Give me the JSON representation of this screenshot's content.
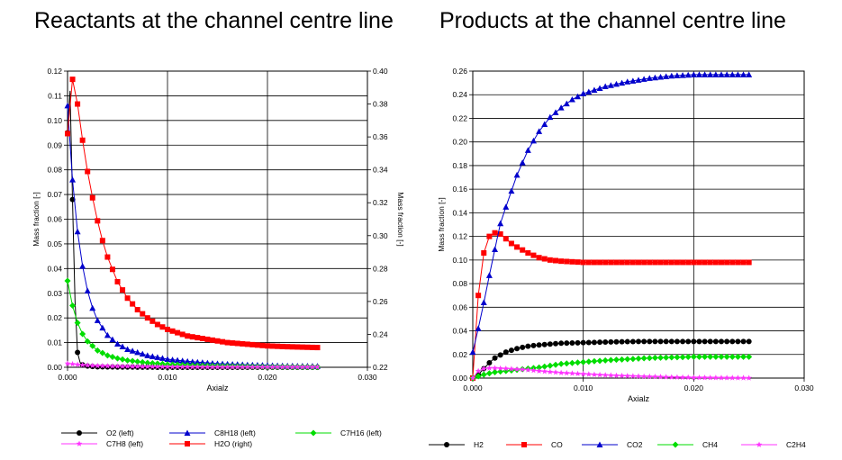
{
  "chart_data": [
    {
      "type": "line",
      "title": "Reactants at the channel centre line",
      "xlabel": "Axialz",
      "ylabel": "Mass fraction [-]",
      "ylabel_right": "Mass fraction [-]",
      "xlim": [
        0.0,
        0.03
      ],
      "ylim": [
        0.0,
        0.12
      ],
      "ylim_right": [
        0.22,
        0.4
      ],
      "xticks": [
        "0.000",
        "0.010",
        "0.020",
        "0.030"
      ],
      "yticks": [
        "0.00",
        "0.01",
        "0.02",
        "0.03",
        "0.04",
        "0.05",
        "0.06",
        "0.07",
        "0.08",
        "0.09",
        "0.10",
        "0.11",
        "0.12"
      ],
      "yticks_right": [
        "0.22",
        "0.24",
        "0.26",
        "0.28",
        "0.30",
        "0.32",
        "0.34",
        "0.36",
        "0.38",
        "0.40"
      ],
      "grid": true,
      "legend_position": "bottom",
      "series": [
        {
          "name": "O2 (left)",
          "color": "#000000",
          "marker": "circle",
          "axis": "left",
          "x": [
            0,
            0.00025,
            0.0005,
            0.00075,
            0.001,
            0.00125,
            0.0015,
            0.002,
            0.0025,
            0.003,
            0.005,
            0.01,
            0.015,
            0.02,
            0.025
          ],
          "y": [
            0.095,
            0.112,
            0.068,
            0.027,
            0.006,
            0.002,
            0.001,
            0.0005,
            0.0003,
            0.0002,
            0.0001,
            0.0,
            0.0,
            0.0,
            0.0
          ]
        },
        {
          "name": "C8H18 (left)",
          "color": "#0000cc",
          "marker": "triangle",
          "axis": "left",
          "x": [
            0,
            0.0005,
            0.001,
            0.0015,
            0.002,
            0.0025,
            0.003,
            0.004,
            0.005,
            0.006,
            0.008,
            0.01,
            0.012,
            0.015,
            0.018,
            0.02,
            0.022,
            0.025
          ],
          "y": [
            0.106,
            0.076,
            0.055,
            0.041,
            0.031,
            0.024,
            0.019,
            0.013,
            0.0095,
            0.0073,
            0.0048,
            0.0033,
            0.0024,
            0.0015,
            0.001,
            0.0008,
            0.0006,
            0.0005
          ]
        },
        {
          "name": "C7H16 (left)",
          "color": "#00dd00",
          "marker": "diamond",
          "axis": "left",
          "x": [
            0,
            0.0005,
            0.001,
            0.0015,
            0.002,
            0.003,
            0.004,
            0.005,
            0.006,
            0.008,
            0.01,
            0.012,
            0.015,
            0.02,
            0.025
          ],
          "y": [
            0.035,
            0.025,
            0.018,
            0.0135,
            0.0105,
            0.0068,
            0.0048,
            0.0036,
            0.0028,
            0.0018,
            0.0012,
            0.0008,
            0.0005,
            0.0002,
            0.0001
          ]
        },
        {
          "name": "C7H8 (left)",
          "color": "#ff33ff",
          "marker": "star",
          "axis": "left",
          "x": [
            0,
            0.0005,
            0.001,
            0.002,
            0.003,
            0.005,
            0.01,
            0.015,
            0.02,
            0.025
          ],
          "y": [
            0.0015,
            0.0013,
            0.0011,
            0.0008,
            0.0006,
            0.0004,
            0.0002,
            0.0001,
            0.0001,
            0.0001
          ]
        },
        {
          "name": "H2O (right)",
          "color": "#ff0000",
          "marker": "square",
          "axis": "right",
          "x": [
            0,
            0.0005,
            0.001,
            0.0015,
            0.002,
            0.0025,
            0.003,
            0.0035,
            0.004,
            0.005,
            0.006,
            0.007,
            0.008,
            0.009,
            0.01,
            0.012,
            0.014,
            0.016,
            0.018,
            0.02,
            0.022,
            0.025
          ],
          "y": [
            0.362,
            0.395,
            0.38,
            0.358,
            0.339,
            0.323,
            0.309,
            0.297,
            0.287,
            0.272,
            0.262,
            0.255,
            0.25,
            0.246,
            0.243,
            0.239,
            0.237,
            0.235,
            0.234,
            0.233,
            0.2325,
            0.232
          ]
        }
      ]
    },
    {
      "type": "line",
      "title": "Products at the channel centre line",
      "xlabel": "Axialz",
      "ylabel": "Mass fraction [-]",
      "xlim": [
        0.0,
        0.03
      ],
      "ylim": [
        0.0,
        0.26
      ],
      "xticks": [
        "0.000",
        "0.010",
        "0.020",
        "0.030"
      ],
      "yticks": [
        "0.00",
        "0.02",
        "0.04",
        "0.06",
        "0.08",
        "0.10",
        "0.12",
        "0.14",
        "0.16",
        "0.18",
        "0.20",
        "0.22",
        "0.24",
        "0.26"
      ],
      "grid": true,
      "legend_position": "bottom",
      "series": [
        {
          "name": "H2",
          "color": "#000000",
          "marker": "circle",
          "x": [
            0,
            0.0005,
            0.001,
            0.0015,
            0.002,
            0.003,
            0.004,
            0.005,
            0.006,
            0.008,
            0.01,
            0.012,
            0.015,
            0.018,
            0.02,
            0.022,
            0.025
          ],
          "y": [
            0.0,
            0.003,
            0.008,
            0.013,
            0.017,
            0.022,
            0.025,
            0.027,
            0.028,
            0.0295,
            0.03,
            0.0305,
            0.031,
            0.031,
            0.031,
            0.031,
            0.031
          ]
        },
        {
          "name": "CO",
          "color": "#ff0000",
          "marker": "square",
          "x": [
            0,
            0.0005,
            0.001,
            0.0015,
            0.002,
            0.0025,
            0.003,
            0.0035,
            0.004,
            0.005,
            0.006,
            0.007,
            0.008,
            0.009,
            0.01,
            0.012,
            0.015,
            0.02,
            0.025
          ],
          "y": [
            0.0,
            0.07,
            0.106,
            0.12,
            0.123,
            0.122,
            0.118,
            0.114,
            0.111,
            0.106,
            0.102,
            0.1,
            0.099,
            0.0985,
            0.098,
            0.098,
            0.098,
            0.098,
            0.098
          ]
        },
        {
          "name": "CO2",
          "color": "#0000cc",
          "marker": "triangle",
          "x": [
            0,
            0.0005,
            0.001,
            0.0015,
            0.002,
            0.0025,
            0.003,
            0.004,
            0.005,
            0.006,
            0.007,
            0.008,
            0.009,
            0.01,
            0.012,
            0.014,
            0.016,
            0.018,
            0.02,
            0.022,
            0.025
          ],
          "y": [
            0.022,
            0.042,
            0.064,
            0.087,
            0.109,
            0.131,
            0.145,
            0.172,
            0.193,
            0.209,
            0.221,
            0.229,
            0.236,
            0.241,
            0.247,
            0.251,
            0.254,
            0.256,
            0.257,
            0.257,
            0.257
          ]
        },
        {
          "name": "CH4",
          "color": "#00dd00",
          "marker": "diamond",
          "x": [
            0,
            0.001,
            0.002,
            0.003,
            0.004,
            0.005,
            0.006,
            0.007,
            0.008,
            0.01,
            0.012,
            0.014,
            0.016,
            0.018,
            0.02,
            0.025
          ],
          "y": [
            0.0,
            0.003,
            0.005,
            0.006,
            0.007,
            0.008,
            0.009,
            0.0105,
            0.012,
            0.0135,
            0.015,
            0.016,
            0.017,
            0.0175,
            0.018,
            0.018
          ]
        },
        {
          "name": "C2H4",
          "color": "#ff33ff",
          "marker": "star",
          "x": [
            0,
            0.0005,
            0.001,
            0.0015,
            0.002,
            0.003,
            0.004,
            0.005,
            0.006,
            0.008,
            0.01,
            0.012,
            0.015,
            0.018,
            0.02,
            0.025
          ],
          "y": [
            0.0,
            0.006,
            0.008,
            0.0085,
            0.0085,
            0.008,
            0.0075,
            0.007,
            0.006,
            0.0045,
            0.0035,
            0.0025,
            0.0015,
            0.0008,
            0.0004,
            0.0001
          ]
        }
      ]
    }
  ]
}
